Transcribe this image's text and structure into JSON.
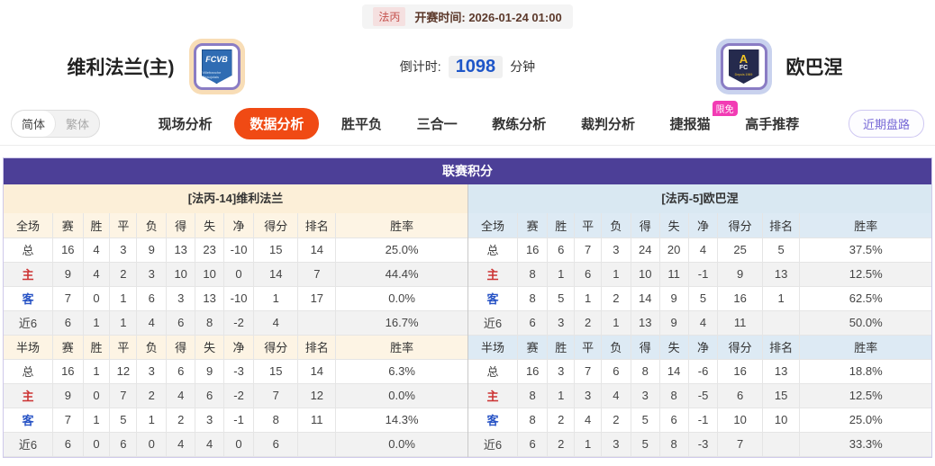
{
  "header": {
    "league_badge": "法丙",
    "kickoff_label": "开赛时间:",
    "kickoff_time": "2026-01-24 01:00",
    "home_team": "维利法兰(主)",
    "away_team": "欧巴涅",
    "home_logo_line1": "FCVB",
    "home_logo_line2": "Villefranche Beaujolais",
    "away_logo_line1": "A",
    "away_logo_line2": "FC",
    "away_logo_line3": "Depuis 1969",
    "countdown_label": "倒计时:",
    "countdown_value": "1098",
    "countdown_unit": "分钟"
  },
  "nav": {
    "lang_simplified": "简体",
    "lang_traditional": "繁体",
    "tabs": [
      {
        "label": "现场分析",
        "active": false
      },
      {
        "label": "数据分析",
        "active": true
      },
      {
        "label": "胜平负",
        "active": false
      },
      {
        "label": "三合一",
        "active": false
      },
      {
        "label": "教练分析",
        "active": false
      },
      {
        "label": "裁判分析",
        "active": false
      },
      {
        "label": "捷报猫",
        "active": false,
        "badge": "限免"
      },
      {
        "label": "高手推荐",
        "active": false
      }
    ],
    "recent_button": "近期盘路"
  },
  "table": {
    "title": "联赛积分",
    "home": {
      "team_header": "[法丙-14]维利法兰",
      "sections": [
        {
          "header": [
            "全场",
            "赛",
            "胜",
            "平",
            "负",
            "得",
            "失",
            "净",
            "得分",
            "排名",
            "胜率"
          ],
          "rows": [
            {
              "label": "总",
              "type": "total",
              "values": [
                "16",
                "4",
                "3",
                "9",
                "13",
                "23",
                "-10",
                "15",
                "14",
                "25.0%"
              ]
            },
            {
              "label": "主",
              "type": "home",
              "values": [
                "9",
                "4",
                "2",
                "3",
                "10",
                "10",
                "0",
                "14",
                "7",
                "44.4%"
              ]
            },
            {
              "label": "客",
              "type": "away",
              "values": [
                "7",
                "0",
                "1",
                "6",
                "3",
                "13",
                "-10",
                "1",
                "17",
                "0.0%"
              ]
            },
            {
              "label": "近6",
              "type": "recent",
              "values": [
                "6",
                "1",
                "1",
                "4",
                "6",
                "8",
                "-2",
                "4",
                "",
                "16.7%"
              ]
            }
          ]
        },
        {
          "header": [
            "半场",
            "赛",
            "胜",
            "平",
            "负",
            "得",
            "失",
            "净",
            "得分",
            "排名",
            "胜率"
          ],
          "rows": [
            {
              "label": "总",
              "type": "total",
              "values": [
                "16",
                "1",
                "12",
                "3",
                "6",
                "9",
                "-3",
                "15",
                "14",
                "6.3%"
              ]
            },
            {
              "label": "主",
              "type": "home",
              "values": [
                "9",
                "0",
                "7",
                "2",
                "4",
                "6",
                "-2",
                "7",
                "12",
                "0.0%"
              ]
            },
            {
              "label": "客",
              "type": "away",
              "values": [
                "7",
                "1",
                "5",
                "1",
                "2",
                "3",
                "-1",
                "8",
                "11",
                "14.3%"
              ]
            },
            {
              "label": "近6",
              "type": "recent",
              "values": [
                "6",
                "0",
                "6",
                "0",
                "4",
                "4",
                "0",
                "6",
                "",
                "0.0%"
              ]
            }
          ]
        }
      ]
    },
    "away": {
      "team_header": "[法丙-5]欧巴涅",
      "sections": [
        {
          "header": [
            "全场",
            "赛",
            "胜",
            "平",
            "负",
            "得",
            "失",
            "净",
            "得分",
            "排名",
            "胜率"
          ],
          "rows": [
            {
              "label": "总",
              "type": "total",
              "values": [
                "16",
                "6",
                "7",
                "3",
                "24",
                "20",
                "4",
                "25",
                "5",
                "37.5%"
              ]
            },
            {
              "label": "主",
              "type": "home",
              "values": [
                "8",
                "1",
                "6",
                "1",
                "10",
                "11",
                "-1",
                "9",
                "13",
                "12.5%"
              ]
            },
            {
              "label": "客",
              "type": "away",
              "values": [
                "8",
                "5",
                "1",
                "2",
                "14",
                "9",
                "5",
                "16",
                "1",
                "62.5%"
              ]
            },
            {
              "label": "近6",
              "type": "recent",
              "values": [
                "6",
                "3",
                "2",
                "1",
                "13",
                "9",
                "4",
                "11",
                "",
                "50.0%"
              ]
            }
          ]
        },
        {
          "header": [
            "半场",
            "赛",
            "胜",
            "平",
            "负",
            "得",
            "失",
            "净",
            "得分",
            "排名",
            "胜率"
          ],
          "rows": [
            {
              "label": "总",
              "type": "total",
              "values": [
                "16",
                "3",
                "7",
                "6",
                "8",
                "14",
                "-6",
                "16",
                "13",
                "18.8%"
              ]
            },
            {
              "label": "主",
              "type": "home",
              "values": [
                "8",
                "1",
                "3",
                "4",
                "3",
                "8",
                "-5",
                "6",
                "15",
                "12.5%"
              ]
            },
            {
              "label": "客",
              "type": "away",
              "values": [
                "8",
                "2",
                "4",
                "2",
                "5",
                "6",
                "-1",
                "10",
                "10",
                "25.0%"
              ]
            },
            {
              "label": "近6",
              "type": "recent",
              "values": [
                "6",
                "2",
                "1",
                "3",
                "5",
                "8",
                "-3",
                "7",
                "",
                "33.3%"
              ]
            }
          ]
        }
      ]
    }
  },
  "colors": {
    "table_title_bg": "#4c3f97",
    "home_header_bg": "#fcefd8",
    "away_header_bg": "#d9e8f2",
    "active_tab_bg": "#f04a14",
    "badge_bg": "#f23cb4",
    "countdown_value": "#1e56c8",
    "home_label": "#cc3333",
    "away_label": "#2753c5"
  }
}
